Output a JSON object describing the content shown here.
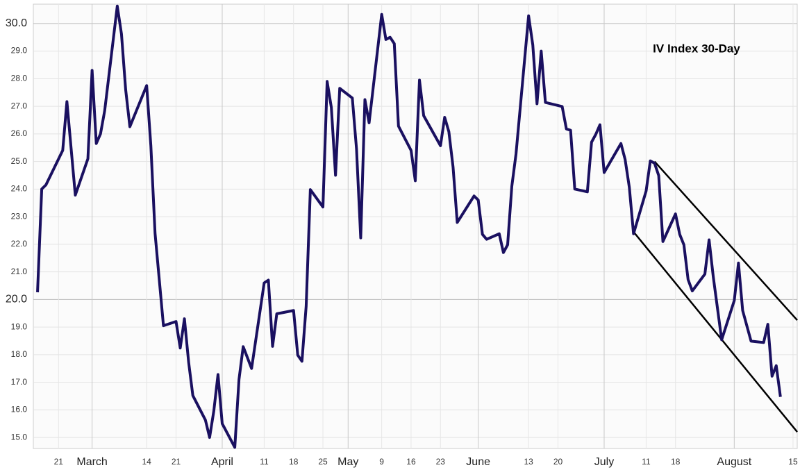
{
  "chart_data": {
    "type": "line",
    "annotation": "IV Index 30-Day",
    "color": "#1a1060",
    "x": [
      "02-16",
      "02-17",
      "02-18",
      "02-22",
      "02-23",
      "02-25",
      "02-28",
      "03-01",
      "03-02",
      "03-03",
      "03-04",
      "03-07",
      "03-08",
      "03-09",
      "03-10",
      "03-14",
      "03-15",
      "03-16",
      "03-18",
      "03-21",
      "03-22",
      "03-23",
      "03-24",
      "03-25",
      "03-28",
      "03-29",
      "03-30",
      "03-31",
      "04-01",
      "04-04",
      "04-05",
      "04-06",
      "04-08",
      "04-11",
      "04-12",
      "04-13",
      "04-14",
      "04-18",
      "04-19",
      "04-20",
      "04-21",
      "04-22",
      "04-25",
      "04-26",
      "04-27",
      "04-28",
      "04-29",
      "05-02",
      "05-03",
      "05-04",
      "05-05",
      "05-06",
      "05-09",
      "05-10",
      "05-11",
      "05-12",
      "05-13",
      "05-16",
      "05-17",
      "05-18",
      "05-19",
      "05-23",
      "05-24",
      "05-25",
      "05-26",
      "05-27",
      "05-31",
      "06-01",
      "06-02",
      "06-03",
      "06-06",
      "06-07",
      "06-08",
      "06-09",
      "06-10",
      "06-13",
      "06-14",
      "06-15",
      "06-16",
      "06-17",
      "06-21",
      "06-22",
      "06-23",
      "06-24",
      "06-27",
      "06-28",
      "06-29",
      "06-30",
      "07-01",
      "07-05",
      "07-06",
      "07-07",
      "07-08",
      "07-11",
      "07-12",
      "07-13",
      "07-14",
      "07-15",
      "07-18",
      "07-19",
      "07-20",
      "07-21",
      "07-22",
      "07-25",
      "07-26",
      "07-27",
      "07-29",
      "08-01",
      "08-02",
      "08-03",
      "08-05",
      "08-08",
      "08-09",
      "08-10",
      "08-11",
      "08-12"
    ],
    "values": [
      20.26,
      24.0,
      24.15,
      25.4,
      27.17,
      23.78,
      25.1,
      28.3,
      25.65,
      26.0,
      26.84,
      30.63,
      29.62,
      27.6,
      26.26,
      27.75,
      25.57,
      22.4,
      19.05,
      19.2,
      18.24,
      19.3,
      17.73,
      16.52,
      15.63,
      15.0,
      15.96,
      17.28,
      15.5,
      14.64,
      17.1,
      18.29,
      17.5,
      20.6,
      20.7,
      18.3,
      19.48,
      19.6,
      17.98,
      17.76,
      19.75,
      23.98,
      23.35,
      27.9,
      26.96,
      24.5,
      27.65,
      27.3,
      25.45,
      22.23,
      27.24,
      26.4,
      30.33,
      29.42,
      29.5,
      29.27,
      26.28,
      25.4,
      24.3,
      27.95,
      26.66,
      25.57,
      26.6,
      26.08,
      24.8,
      22.79,
      23.75,
      23.6,
      22.36,
      22.18,
      22.38,
      21.7,
      21.98,
      24.1,
      25.27,
      30.28,
      29.22,
      27.09,
      29.0,
      27.14,
      26.99,
      26.18,
      26.13,
      24.0,
      23.9,
      25.7,
      25.98,
      26.33,
      24.6,
      25.65,
      25.07,
      24.06,
      22.38,
      23.93,
      25.02,
      24.94,
      24.49,
      22.1,
      23.1,
      22.36,
      21.98,
      20.72,
      20.31,
      20.92,
      22.16,
      20.82,
      18.54,
      19.96,
      21.32,
      19.6,
      18.49,
      18.44,
      19.1,
      17.22,
      17.6,
      16.47
    ],
    "trendlines": [
      {
        "x": [
          "07-13",
          "08-16"
        ],
        "values": [
          25.0,
          19.25
        ],
        "color": "#000000"
      },
      {
        "x": [
          "07-08",
          "08-16"
        ],
        "values": [
          22.45,
          15.2
        ],
        "color": "#000000"
      }
    ],
    "xlim": [
      "02-15",
      "08-16"
    ],
    "xticks": [
      {
        "value": "02-21",
        "label": "21"
      },
      {
        "value": "03-01",
        "label": "March"
      },
      {
        "value": "03-14",
        "label": "14"
      },
      {
        "value": "03-21",
        "label": "21"
      },
      {
        "value": "04-01",
        "label": "April"
      },
      {
        "value": "04-11",
        "label": "11"
      },
      {
        "value": "04-18",
        "label": "18"
      },
      {
        "value": "04-25",
        "label": "25"
      },
      {
        "value": "05-01",
        "label": "May"
      },
      {
        "value": "05-09",
        "label": "9"
      },
      {
        "value": "05-16",
        "label": "16"
      },
      {
        "value": "05-23",
        "label": "23"
      },
      {
        "value": "06-01",
        "label": "June"
      },
      {
        "value": "06-13",
        "label": "13"
      },
      {
        "value": "06-20",
        "label": "20"
      },
      {
        "value": "07-01",
        "label": "July"
      },
      {
        "value": "07-11",
        "label": "11"
      },
      {
        "value": "07-18",
        "label": "18"
      },
      {
        "value": "08-01",
        "label": "August"
      },
      {
        "value": "08-15",
        "label": "15"
      }
    ],
    "ylim": [
      14.6,
      30.7
    ],
    "yticks": [
      {
        "value": 15,
        "label": "15.0"
      },
      {
        "value": 16,
        "label": "16.0"
      },
      {
        "value": 17,
        "label": "17.0"
      },
      {
        "value": 18,
        "label": "18.0"
      },
      {
        "value": 19,
        "label": "19.0"
      },
      {
        "value": 20,
        "label": "20.0"
      },
      {
        "value": 21,
        "label": "21.0"
      },
      {
        "value": 22,
        "label": "22.0"
      },
      {
        "value": 23,
        "label": "23.0"
      },
      {
        "value": 24,
        "label": "24.0"
      },
      {
        "value": 25,
        "label": "25.0"
      },
      {
        "value": 26,
        "label": "26.0"
      },
      {
        "value": 27,
        "label": "27.0"
      },
      {
        "value": 28,
        "label": "28.0"
      },
      {
        "value": 29,
        "label": "29.0"
      },
      {
        "value": 30,
        "label": "30.0"
      }
    ],
    "grid": true
  }
}
